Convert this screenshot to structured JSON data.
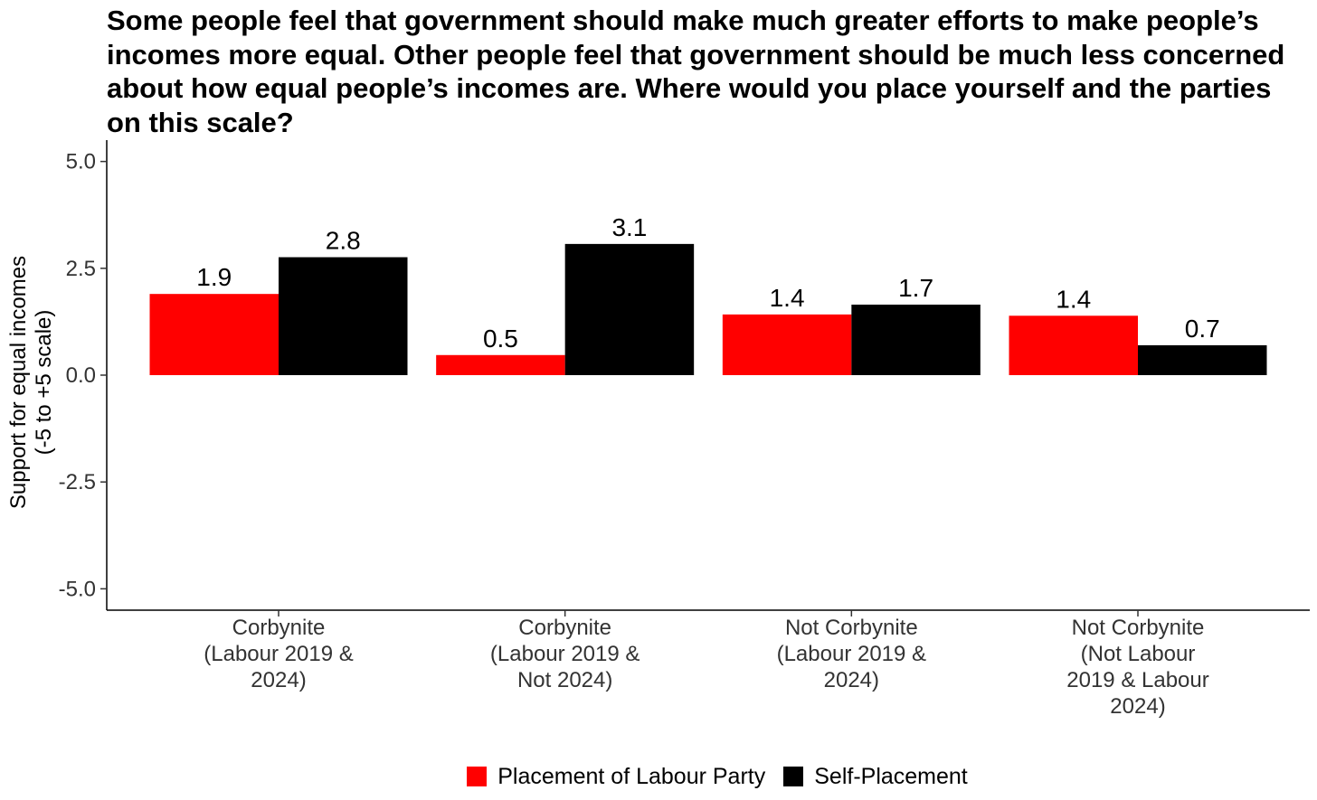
{
  "chart_data": {
    "type": "bar",
    "title": "Some people feel that government should make much greater efforts to make people’s incomes more equal. Other people feel that government should be much less concerned about how equal people’s incomes are. Where would you place yourself and the parties on this scale?",
    "xlabel": "",
    "ylabel_line1": "Support for equal incomes",
    "ylabel_line2": "(-5 to +5 scale)",
    "ylim": [
      -5.5,
      5.5
    ],
    "yticks": [
      -5.0,
      -2.5,
      0.0,
      2.5,
      5.0
    ],
    "ytick_labels": [
      "-5.0",
      "-2.5",
      "0.0",
      "2.5",
      "5.0"
    ],
    "categories": [
      [
        "Corbynite",
        "(Labour 2019 &",
        "2024)"
      ],
      [
        "Corbynite",
        "(Labour 2019 &",
        "Not 2024)"
      ],
      [
        "Not Corbynite",
        "(Labour 2019 &",
        "2024)"
      ],
      [
        "Not Corbynite",
        "(Not Labour",
        "2019 & Labour",
        "2024)"
      ]
    ],
    "series": [
      {
        "name": "Placement of Labour Party",
        "color": "#ff0000",
        "values": [
          1.9,
          0.47,
          1.42,
          1.39
        ],
        "labels": [
          "1.9",
          "0.5",
          "1.4",
          "1.4"
        ]
      },
      {
        "name": "Self-Placement",
        "color": "#000000",
        "values": [
          2.76,
          3.07,
          1.65,
          0.7
        ],
        "labels": [
          "2.8",
          "3.1",
          "1.7",
          "0.7"
        ]
      }
    ],
    "legend_position": "bottom"
  }
}
